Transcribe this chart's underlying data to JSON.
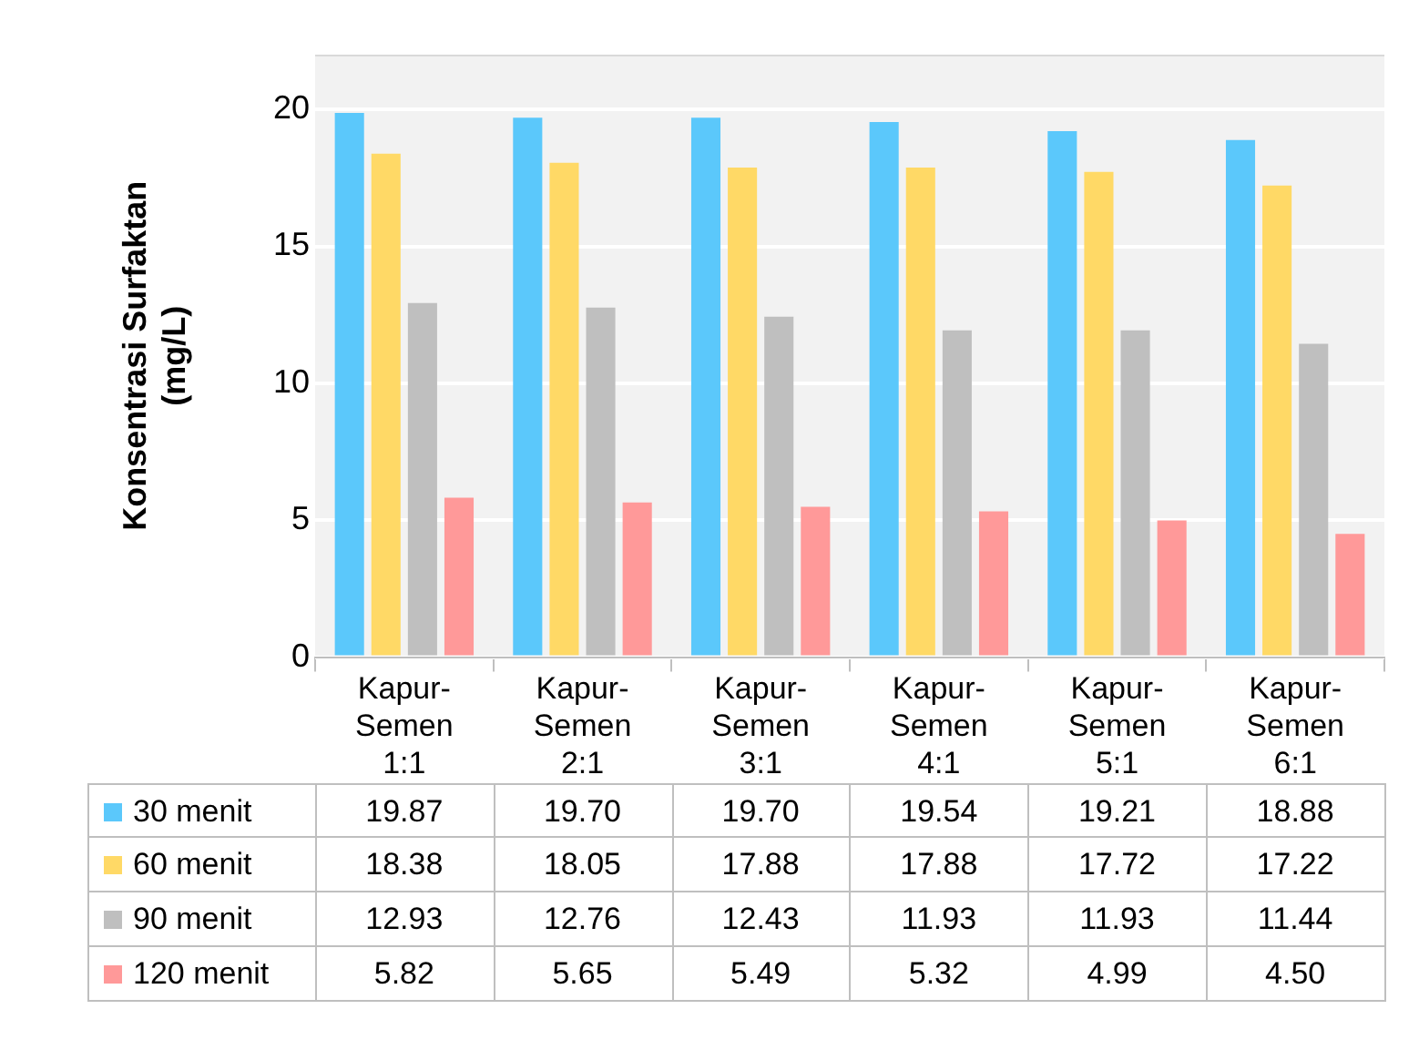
{
  "chart_data": {
    "type": "bar",
    "ylabel": "Konsentrasi Surfaktan (mg/L)",
    "categories": [
      "Kapur-Semen 1:1",
      "Kapur-Semen 2:1",
      "Kapur-Semen 3:1",
      "Kapur-Semen 4:1",
      "Kapur-Semen 5:1",
      "Kapur-Semen 6:1"
    ],
    "series": [
      {
        "name": "30 menit",
        "color": "#5bc8fb",
        "values": [
          19.87,
          19.7,
          19.7,
          19.54,
          19.21,
          18.88
        ],
        "value_labels": [
          "19.87",
          "19.70",
          "19.70",
          "19.54",
          "19.21",
          "18.88"
        ]
      },
      {
        "name": "60 menit",
        "color": "#ffd966",
        "values": [
          18.38,
          18.05,
          17.88,
          17.88,
          17.72,
          17.22
        ],
        "value_labels": [
          "18.38",
          "18.05",
          "17.88",
          "17.88",
          "17.72",
          "17.22"
        ]
      },
      {
        "name": "90 menit",
        "color": "#bfbfbf",
        "values": [
          12.93,
          12.76,
          12.43,
          11.93,
          11.93,
          11.44
        ],
        "value_labels": [
          "12.93",
          "12.76",
          "12.43",
          "11.93",
          "11.93",
          "11.44"
        ]
      },
      {
        "name": "120 menit",
        "color": "#ff9999",
        "values": [
          5.82,
          5.65,
          5.49,
          5.32,
          4.99,
          4.5
        ],
        "value_labels": [
          "5.82",
          "5.65",
          "5.49",
          "5.32",
          "4.99",
          "4.50"
        ]
      }
    ],
    "ylim": [
      0,
      22
    ],
    "yticks": [
      0,
      5,
      10,
      15,
      20
    ],
    "grid": "y",
    "legend": "bottom"
  }
}
